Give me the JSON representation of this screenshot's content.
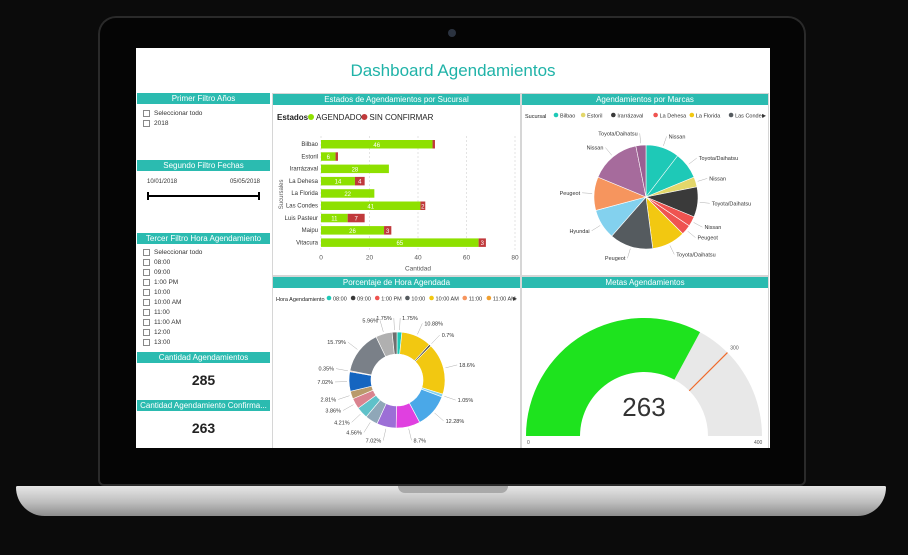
{
  "dashboard": {
    "title": "Dashboard Agendamientos"
  },
  "filters": {
    "primer": {
      "title": "Primer Filtro Años",
      "items": [
        "Seleccionar todo",
        "2018"
      ]
    },
    "segundo": {
      "title": "Segundo Filtro Fechas",
      "start": "10/01/2018",
      "end": "05/05/2018"
    },
    "tercer": {
      "title": "Tercer Filtro Hora Agendamiento",
      "items": [
        "Seleccionar todo",
        "08:00",
        "09:00",
        "1:00 PM",
        "10:00",
        "10:00 AM",
        "11:00",
        "11:00 AM",
        "12:00",
        "13:00"
      ]
    }
  },
  "kpis": {
    "cantidad": {
      "title": "Cantidad Agendamientos",
      "value": "285"
    },
    "confirmados": {
      "title": "Cantidad Agendamiento Confirma...",
      "value": "263"
    }
  },
  "panels": {
    "estados": "Estados de Agendamientos por Sucursal",
    "marcas": "Agendamientos por Marcas",
    "porcentaje": "Porcentaje de Hora Agendada",
    "metas": "Metas Agendamientos"
  },
  "chart_data": [
    {
      "type": "bar",
      "title": "Estados de Agendamientos por Sucursal",
      "legend_title": "Estados",
      "xlabel": "Cantidad",
      "ylabel": "Sucursales",
      "categories": [
        "Bilbao",
        "Estoril",
        "Irarrázaval",
        "La Dehesa",
        "La Florida",
        "Las Condes",
        "Luis Pasteur",
        "Maipu",
        "Vitacura"
      ],
      "series": [
        {
          "name": "AGENDADO",
          "color": "#8ee000",
          "values": [
            46,
            6,
            28,
            14,
            22,
            41,
            11,
            26,
            65
          ]
        },
        {
          "name": "SIN CONFIRMAR",
          "color": "#c0393b",
          "values": [
            1,
            1,
            0,
            4,
            0,
            2,
            7,
            3,
            3
          ]
        }
      ],
      "xlim": [
        0,
        80
      ],
      "xticks": [
        0,
        20,
        40,
        60,
        80
      ]
    },
    {
      "type": "pie",
      "title": "Agendamientos por Marcas",
      "legend_title": "Sucursal",
      "legend": [
        {
          "name": "Bilbao",
          "color": "#1ec9b7"
        },
        {
          "name": "Estoril",
          "color": "#e3d76a"
        },
        {
          "name": "Irarrázaval",
          "color": "#3a3a3a"
        },
        {
          "name": "La Dehesa",
          "color": "#ef5350"
        },
        {
          "name": "La Florida",
          "color": "#f2c811"
        },
        {
          "name": "Las Condes",
          "color": "#555b5f"
        }
      ],
      "slices": [
        {
          "label": "Nissan",
          "value": 10,
          "color": "#1ec9b7"
        },
        {
          "label": "Toyota/Daihatsu",
          "value": 8,
          "color": "#1ec9b7"
        },
        {
          "label": "Nissan",
          "value": 3,
          "color": "#e3d76a"
        },
        {
          "label": "Toyota/Daihatsu",
          "value": 9,
          "color": "#3a3a3a"
        },
        {
          "label": "Nissan",
          "value": 3,
          "color": "#ef5350"
        },
        {
          "label": "Peugeot",
          "value": 3,
          "color": "#ef5350"
        },
        {
          "label": "Toyota/Daihatsu",
          "value": 10,
          "color": "#f2c811"
        },
        {
          "label": "Peugeot",
          "value": 13,
          "color": "#555b5f"
        },
        {
          "label": "Hyundai",
          "value": 9,
          "color": "#83d1ee"
        },
        {
          "label": "Peugeot",
          "value": 10,
          "color": "#f6955e"
        },
        {
          "label": "Nissan",
          "value": 15,
          "color": "#a66b9c"
        },
        {
          "label": "Toyota/Daihatsu",
          "value": 3,
          "color": "#9b5f92"
        }
      ]
    },
    {
      "type": "pie",
      "title": "Porcentaje de Hora Agendada",
      "legend_title": "Hora Agendamiento",
      "legend": [
        {
          "name": "08:00",
          "color": "#1ec9b7"
        },
        {
          "name": "09:00",
          "color": "#3a3a3a"
        },
        {
          "name": "1:00 PM",
          "color": "#ef5350"
        },
        {
          "name": "10:00",
          "color": "#555b5f"
        },
        {
          "name": "10:00 AM",
          "color": "#f2c811"
        },
        {
          "name": "11:00",
          "color": "#f6955e"
        },
        {
          "name": "11:00 AM",
          "color": "#f0a030"
        }
      ],
      "slices": [
        {
          "label": "1.75%",
          "value": 1.75,
          "color": "#1ec9b7"
        },
        {
          "label": "10.88%",
          "value": 10.88,
          "color": "#f2c811"
        },
        {
          "label": "0.7%",
          "value": 0.7,
          "color": "#3a3a3a"
        },
        {
          "label": "18.6%",
          "value": 18.6,
          "color": "#f2c811"
        },
        {
          "label": "1.05%",
          "value": 1.05,
          "color": "#83d1ee"
        },
        {
          "label": "12.28%",
          "value": 12.28,
          "color": "#4aa8e8"
        },
        {
          "label": "8.7%",
          "value": 8.7,
          "color": "#e040e0"
        },
        {
          "label": "7.02%",
          "value": 7.02,
          "color": "#9c6fd6"
        },
        {
          "label": "4.56%",
          "value": 4.56,
          "color": "#8fa7b8"
        },
        {
          "label": "4.21%",
          "value": 4.21,
          "color": "#5fc1c9"
        },
        {
          "label": "3.86%",
          "value": 3.86,
          "color": "#d9838f"
        },
        {
          "label": "2.81%",
          "value": 2.81,
          "color": "#b99a6b"
        },
        {
          "label": "7.02%",
          "value": 7.02,
          "color": "#1565c0"
        },
        {
          "label": "0.35%",
          "value": 0.35,
          "color": "#f6955e"
        },
        {
          "label": "15.79%",
          "value": 15.79,
          "color": "#7a8088"
        },
        {
          "label": "5.96%",
          "value": 5.96,
          "color": "#b0b0b0"
        },
        {
          "label": "1.75%",
          "value": 1.75,
          "color": "#6e6e6e"
        }
      ]
    },
    {
      "type": "gauge",
      "title": "Metas Agendamientos",
      "value": 263,
      "min": 0,
      "max": 400,
      "target": 300,
      "min_label": "0",
      "max_label": "400",
      "target_label": "300",
      "value_label": "263",
      "fill_color": "#1ee31e",
      "track_color": "#e8e8e8",
      "target_color": "#f06a2a"
    }
  ]
}
